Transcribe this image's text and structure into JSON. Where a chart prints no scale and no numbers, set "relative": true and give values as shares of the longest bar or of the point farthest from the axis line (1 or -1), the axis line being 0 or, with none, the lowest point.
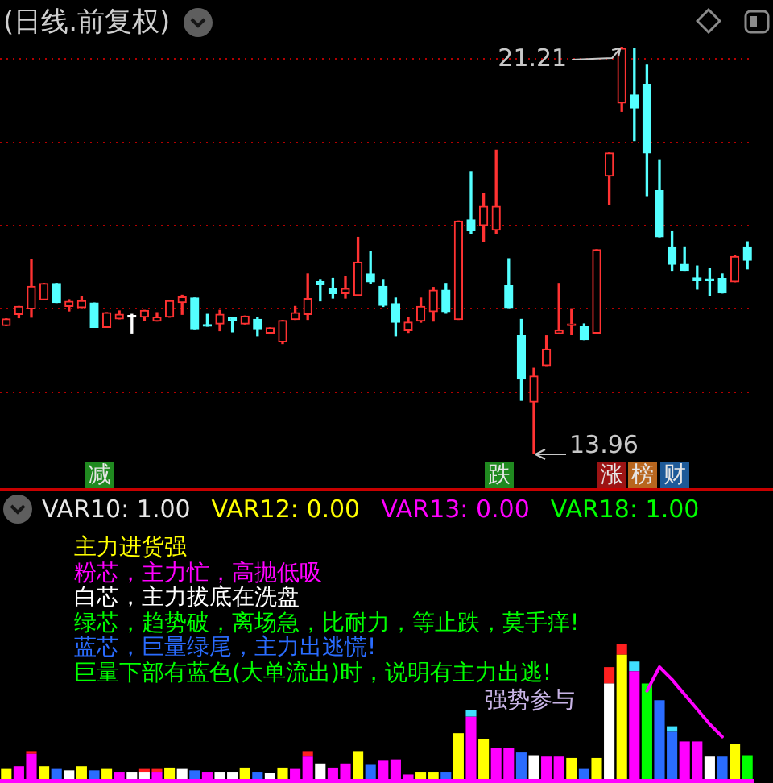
{
  "chart_data": [
    {
      "type": "candlestick",
      "title": "(日线.前复权)",
      "categories": [
        null,
        null,
        null,
        null,
        null,
        null,
        null,
        null,
        null,
        null,
        null,
        null,
        null,
        null,
        null,
        null,
        null,
        null,
        null,
        null,
        null,
        null,
        null,
        null,
        null,
        null,
        null,
        null,
        null,
        null,
        null,
        null,
        null,
        null,
        null,
        null,
        null,
        null,
        null,
        null,
        null,
        null,
        null,
        null,
        null,
        null,
        null,
        null,
        null,
        null,
        null,
        null,
        null,
        null,
        null,
        null,
        null,
        null,
        null,
        null
      ],
      "ohlc": [
        [
          16.25,
          16.37,
          16.25,
          16.37
        ],
        [
          16.45,
          16.59,
          16.39,
          16.59
        ],
        [
          16.55,
          17.43,
          16.4,
          16.95
        ],
        [
          16.71,
          17.0,
          16.71,
          17.0
        ],
        [
          17.0,
          17.0,
          16.66,
          16.66
        ],
        [
          16.59,
          16.71,
          16.51,
          16.68
        ],
        [
          16.57,
          16.77,
          16.57,
          16.69
        ],
        [
          16.65,
          16.65,
          16.22,
          16.22
        ],
        [
          16.22,
          16.48,
          16.22,
          16.48
        ],
        [
          16.37,
          16.51,
          16.37,
          16.45
        ],
        [
          16.4,
          16.45,
          16.12,
          16.4
        ],
        [
          16.4,
          16.52,
          16.34,
          16.52
        ],
        [
          16.33,
          16.48,
          16.33,
          16.4
        ],
        [
          16.4,
          16.69,
          16.4,
          16.69
        ],
        [
          16.66,
          16.79,
          16.45,
          16.76
        ],
        [
          16.74,
          16.74,
          16.18,
          16.18
        ],
        [
          16.26,
          16.45,
          16.24,
          16.24
        ],
        [
          16.28,
          16.52,
          16.16,
          16.45
        ],
        [
          16.39,
          16.39,
          16.14,
          16.34
        ],
        [
          16.28,
          16.42,
          16.28,
          16.42
        ],
        [
          16.36,
          16.4,
          16.07,
          16.18
        ],
        [
          16.12,
          16.21,
          16.12,
          16.21
        ],
        [
          15.96,
          16.34,
          15.93,
          16.34
        ],
        [
          16.36,
          16.59,
          16.36,
          16.48
        ],
        [
          16.45,
          17.17,
          16.36,
          16.73
        ],
        [
          17.03,
          17.07,
          16.69,
          16.98
        ],
        [
          16.91,
          17.09,
          16.74,
          16.82
        ],
        [
          16.82,
          17.12,
          16.74,
          16.91
        ],
        [
          16.79,
          17.82,
          16.79,
          17.38
        ],
        [
          17.17,
          17.57,
          17.0,
          17.03
        ],
        [
          16.95,
          17.07,
          16.59,
          16.61
        ],
        [
          16.64,
          16.74,
          16.07,
          16.31
        ],
        [
          16.16,
          16.39,
          16.13,
          16.31
        ],
        [
          16.33,
          16.74,
          16.31,
          16.59
        ],
        [
          16.5,
          16.93,
          16.33,
          16.88
        ],
        [
          16.88,
          17.0,
          16.47,
          16.5
        ],
        [
          16.36,
          18.11,
          16.36,
          18.11
        ],
        [
          18.13,
          18.99,
          17.89,
          17.94
        ],
        [
          18.03,
          18.6,
          17.74,
          18.37
        ],
        [
          17.95,
          19.37,
          17.89,
          18.37
        ],
        [
          16.96,
          17.44,
          16.57,
          16.57
        ],
        [
          16.07,
          16.36,
          14.92,
          15.3
        ],
        [
          14.89,
          15.49,
          13.96,
          15.35
        ],
        [
          15.54,
          16.07,
          15.54,
          15.83
        ],
        [
          16.12,
          17.0,
          16.12,
          16.16
        ],
        [
          16.25,
          16.55,
          16.09,
          16.28
        ],
        [
          16.23,
          16.28,
          16.0,
          16.0
        ],
        [
          16.12,
          17.6,
          16.12,
          17.6
        ],
        [
          18.91,
          19.32,
          18.41,
          19.32
        ],
        [
          20.21,
          21.21,
          20.06,
          21.18
        ],
        [
          20.35,
          21.18,
          19.54,
          20.12
        ],
        [
          20.54,
          20.88,
          18.56,
          19.32
        ],
        [
          18.65,
          19.2,
          17.83,
          17.83
        ],
        [
          17.65,
          17.92,
          17.22,
          17.34
        ],
        [
          17.34,
          17.65,
          17.22,
          17.22
        ],
        [
          17.1,
          17.31,
          16.9,
          17.05
        ],
        [
          17.08,
          17.26,
          16.79,
          17.05
        ],
        [
          17.09,
          17.17,
          16.83,
          16.83
        ],
        [
          17.03,
          17.5,
          17.03,
          17.48
        ],
        [
          17.65,
          17.74,
          17.26,
          17.41
        ]
      ],
      "colors": [
        "#ff3232",
        "#ff3232",
        "#ff3232",
        "#ff3232",
        "#54ffff",
        "#ff3232",
        "#ff3232",
        "#54ffff",
        "#ff3232",
        "#ff3232",
        "#ffffff",
        "#ff3232",
        "#ff3232",
        "#ff3232",
        "#ff3232",
        "#54ffff",
        "#54ffff",
        "#ff3232",
        "#54ffff",
        "#ff3232",
        "#54ffff",
        "#ff3232",
        "#ff3232",
        "#ff3232",
        "#ff3232",
        "#54ffff",
        "#54ffff",
        "#ff3232",
        "#ff3232",
        "#54ffff",
        "#54ffff",
        "#54ffff",
        "#ff3232",
        "#ff3232",
        "#ff3232",
        "#54ffff",
        "#ff3232",
        "#54ffff",
        "#ff3232",
        "#ff3232",
        "#54ffff",
        "#54ffff",
        "#ff3232",
        "#ff3232",
        "#ff3232",
        "#ff3232",
        "#54ffff",
        "#ff3232",
        "#ff3232",
        "#ff3232",
        "#54ffff",
        "#54ffff",
        "#54ffff",
        "#54ffff",
        "#54ffff",
        "#54ffff",
        "#54ffff",
        "#54ffff",
        "#ff3232",
        "#54ffff"
      ],
      "yticks": [
        {
          "value": 20.99,
          "label": null
        },
        {
          "value": 19.51,
          "label": null
        },
        {
          "value": 18.03,
          "label": null
        },
        {
          "value": 16.55,
          "label": null
        },
        {
          "value": 15.07,
          "label": null
        }
      ],
      "grid": "y",
      "tick_labels": false,
      "annotations": [
        "21.21",
        "13.96",
        "减",
        "跌",
        "涨",
        "榜",
        "财"
      ]
    },
    {
      "type": "bar",
      "stacked": true,
      "relative": true,
      "tick_labels": false,
      "categories": [
        null,
        null,
        null,
        null,
        null,
        null,
        null,
        null,
        null,
        null,
        null,
        null,
        null,
        null,
        null,
        null,
        null,
        null,
        null,
        null,
        null,
        null,
        null,
        null,
        null,
        null,
        null,
        null,
        null,
        null,
        null,
        null,
        null,
        null,
        null,
        null,
        null,
        null,
        null,
        null,
        null,
        null,
        null,
        null,
        null,
        null,
        null,
        null,
        null,
        null,
        null,
        null,
        null,
        null,
        null,
        null,
        null,
        null,
        null,
        null
      ],
      "series": [
        {
          "name": "主力进货强",
          "color": "#ffff00",
          "values": [
            0.09,
            null,
            null,
            0.11,
            null,
            null,
            0.11,
            null,
            0.09,
            null,
            null,
            null,
            null,
            0.1,
            null,
            null,
            null,
            null,
            null,
            0.1,
            null,
            null,
            0.1,
            null,
            null,
            null,
            null,
            null,
            0.22,
            null,
            null,
            null,
            null,
            0.07,
            0.07,
            null,
            0.35,
            null,
            0.31,
            null,
            null,
            null,
            null,
            null,
            null,
            0.17,
            null,
            0.17,
            null,
            0.92,
            null,
            null,
            null,
            null,
            null,
            null,
            null,
            null,
            0.27,
            null
          ]
        },
        {
          "name": "粉芯，主力忙，高抛低吸",
          "color": "#ff00ff",
          "values": [
            null,
            0.11,
            0.2,
            null,
            null,
            null,
            null,
            null,
            null,
            0.07,
            null,
            null,
            0.07,
            null,
            null,
            null,
            0.07,
            null,
            null,
            null,
            null,
            null,
            null,
            0.09,
            0.18,
            null,
            0.1,
            0.13,
            null,
            null,
            0.15,
            0.16,
            0.05,
            null,
            null,
            null,
            null,
            0.47,
            null,
            0.24,
            0.24,
            null,
            null,
            0.18,
            0.18,
            null,
            null,
            null,
            null,
            null,
            0.8,
            null,
            null,
            null,
            0.29,
            0.29,
            null,
            null,
            null,
            null
          ]
        },
        {
          "name": "白芯，主力拔底在洗盘",
          "color": "#ffffff",
          "values": [
            null,
            null,
            null,
            null,
            null,
            0.08,
            null,
            null,
            null,
            null,
            0.07,
            0.07,
            null,
            null,
            0.09,
            null,
            null,
            0.07,
            0.07,
            null,
            null,
            0.06,
            null,
            null,
            null,
            0.13,
            null,
            null,
            null,
            null,
            null,
            null,
            null,
            null,
            null,
            null,
            null,
            null,
            null,
            null,
            null,
            null,
            0.19,
            null,
            null,
            null,
            null,
            null,
            0.71,
            null,
            null,
            null,
            null,
            null,
            null,
            null,
            0.18,
            null,
            null,
            null
          ]
        },
        {
          "name": "绿芯，趋势破，离场急，比耐力，等止跌，莫手痒!",
          "color": "#00ff00",
          "values": [
            null,
            null,
            null,
            null,
            null,
            null,
            null,
            null,
            null,
            null,
            null,
            null,
            null,
            null,
            null,
            null,
            null,
            null,
            null,
            null,
            null,
            null,
            null,
            null,
            null,
            null,
            null,
            null,
            null,
            null,
            null,
            null,
            null,
            null,
            null,
            null,
            null,
            null,
            null,
            null,
            null,
            null,
            null,
            null,
            null,
            null,
            null,
            null,
            null,
            null,
            null,
            0.71,
            null,
            null,
            null,
            null,
            null,
            null,
            null,
            0.19
          ]
        },
        {
          "name": "蓝芯，巨量绿尾，主力出逃慌!",
          "color": "#2a6cff",
          "values": [
            null,
            null,
            null,
            null,
            0.09,
            null,
            null,
            0.08,
            null,
            null,
            null,
            null,
            null,
            null,
            null,
            0.08,
            null,
            null,
            null,
            null,
            0.07,
            null,
            null,
            null,
            null,
            null,
            null,
            null,
            null,
            0.12,
            null,
            null,
            null,
            null,
            null,
            0.07,
            null,
            null,
            null,
            null,
            null,
            0.21,
            null,
            null,
            null,
            null,
            0.09,
            null,
            null,
            null,
            null,
            null,
            0.59,
            0.36,
            null,
            null,
            null,
            0.18,
            null,
            null
          ]
        },
        {
          "color": "#ff2020",
          "values": [
            null,
            null,
            0.02,
            null,
            null,
            null,
            null,
            null,
            null,
            null,
            null,
            0.02,
            0.02,
            null,
            null,
            null,
            null,
            null,
            null,
            null,
            null,
            null,
            null,
            null,
            0.04,
            null,
            null,
            null,
            null,
            null,
            null,
            null,
            null,
            null,
            null,
            null,
            null,
            null,
            null,
            null,
            null,
            null,
            null,
            null,
            null,
            null,
            null,
            null,
            0.12,
            0.08,
            null,
            null,
            null,
            null,
            null,
            null,
            null,
            null,
            null,
            null
          ]
        },
        {
          "color": "#40e0ff",
          "values": [
            null,
            null,
            null,
            null,
            null,
            null,
            null,
            null,
            null,
            null,
            null,
            null,
            null,
            null,
            null,
            null,
            null,
            null,
            null,
            null,
            null,
            null,
            null,
            null,
            null,
            null,
            null,
            null,
            null,
            null,
            null,
            null,
            null,
            null,
            null,
            null,
            null,
            0.05,
            null,
            null,
            null,
            null,
            null,
            null,
            null,
            null,
            null,
            null,
            null,
            null,
            0.07,
            null,
            null,
            0.04,
            null,
            null,
            null,
            null,
            null,
            null
          ]
        }
      ],
      "annotations": [
        "VAR10: 1.00",
        "VAR12: 0.00",
        "VAR13: 0.00",
        "VAR18: 1.00",
        "巨量下部有蓝色(大单流出)时，说明有主力出逃!",
        "强势参与"
      ]
    },
    {
      "type": "line",
      "relative": true,
      "tick_labels": false,
      "categories": [
        null,
        null,
        null,
        null,
        null,
        null,
        null,
        null,
        null,
        null,
        null,
        null,
        null,
        null,
        null,
        null,
        null,
        null,
        null,
        null,
        null,
        null,
        null,
        null,
        null,
        null,
        null,
        null,
        null,
        null,
        null,
        null,
        null,
        null,
        null,
        null,
        null,
        null,
        null,
        null,
        null,
        null,
        null,
        null,
        null,
        null,
        null,
        null,
        null,
        null,
        null,
        null,
        null,
        null,
        null,
        null,
        null,
        null,
        null,
        null
      ],
      "series": [
        {
          "color": "#ff00ff",
          "values": [
            null,
            null,
            null,
            null,
            null,
            null,
            null,
            null,
            null,
            null,
            null,
            null,
            null,
            null,
            null,
            null,
            null,
            null,
            null,
            null,
            null,
            null,
            null,
            null,
            null,
            null,
            null,
            null,
            null,
            null,
            null,
            null,
            null,
            null,
            null,
            null,
            null,
            null,
            null,
            null,
            null,
            null,
            null,
            null,
            null,
            null,
            null,
            null,
            null,
            null,
            null,
            0.79,
            1,
            0.89,
            0.76,
            0.63,
            0.5,
            0.39,
            null,
            null
          ]
        }
      ]
    }
  ]
}
